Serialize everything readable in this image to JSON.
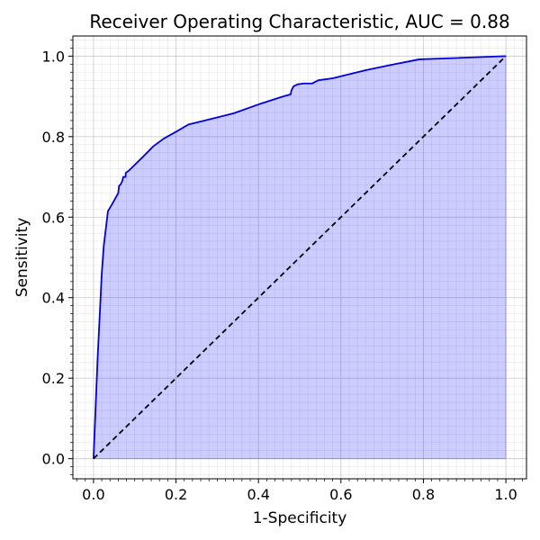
{
  "chart_data": {
    "type": "area",
    "title": "Receiver Operating Characteristic, AUC = 0.88",
    "xlabel": "1-Specificity",
    "ylabel": "Sensitivity",
    "xlim": [
      -0.05,
      1.05
    ],
    "ylim": [
      -0.05,
      1.05
    ],
    "xticks": [
      0.0,
      0.2,
      0.4,
      0.6,
      0.8,
      1.0
    ],
    "xtick_labels": [
      "0.0",
      "0.2",
      "0.4",
      "0.6",
      "0.8",
      "1.0"
    ],
    "yticks": [
      0.0,
      0.2,
      0.4,
      0.6,
      0.8,
      1.0
    ],
    "ytick_labels": [
      "0.0",
      "0.2",
      "0.4",
      "0.6",
      "0.8",
      "1.0"
    ],
    "grid": true,
    "minor_grid": true,
    "series": [
      {
        "kind": "roc-curve",
        "color": "#0000dd",
        "fill_color": "#0000ff",
        "fill_opacity": 0.2,
        "x": [
          0.0,
          0.01,
          0.02,
          0.025,
          0.035,
          0.045,
          0.06,
          0.062,
          0.065,
          0.07,
          0.072,
          0.078,
          0.078,
          0.085,
          0.1,
          0.12,
          0.145,
          0.17,
          0.2,
          0.23,
          0.27,
          0.34,
          0.4,
          0.46,
          0.478,
          0.48,
          0.485,
          0.495,
          0.51,
          0.53,
          0.545,
          0.58,
          0.62,
          0.66,
          0.72,
          0.79,
          0.87,
          1.0
        ],
        "y": [
          0.0,
          0.25,
          0.46,
          0.53,
          0.615,
          0.632,
          0.66,
          0.678,
          0.68,
          0.69,
          0.7,
          0.7,
          0.71,
          0.715,
          0.73,
          0.75,
          0.776,
          0.795,
          0.812,
          0.83,
          0.84,
          0.858,
          0.88,
          0.9,
          0.905,
          0.915,
          0.925,
          0.93,
          0.932,
          0.932,
          0.94,
          0.945,
          0.955,
          0.965,
          0.978,
          0.992,
          0.995,
          1.0
        ]
      },
      {
        "kind": "chance-line",
        "color": "#000000",
        "dashed": true,
        "x": [
          0.0,
          1.0
        ],
        "y": [
          0.0,
          1.0
        ]
      }
    ]
  }
}
